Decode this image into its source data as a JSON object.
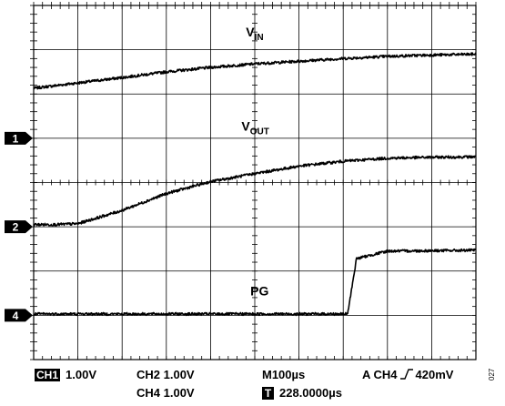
{
  "chart_data": {
    "type": "line",
    "title": "",
    "xlabel": "",
    "ylabel": "",
    "grid": true,
    "divisions": {
      "x": 10,
      "y": 8
    },
    "x_unit": "div",
    "y_unit": "div",
    "xlim": [
      0,
      10
    ],
    "ylim": [
      -4,
      4
    ],
    "series": [
      {
        "name": "VIN",
        "label_main": "V",
        "label_sub": "IN",
        "x": [
          0,
          1,
          2,
          3,
          4,
          5,
          6,
          7,
          8,
          9,
          10
        ],
        "y": [
          2.13,
          2.25,
          2.37,
          2.5,
          2.6,
          2.68,
          2.74,
          2.8,
          2.85,
          2.88,
          2.9
        ]
      },
      {
        "name": "VOUT",
        "label_main": "V",
        "label_sub": "OUT",
        "x": [
          0,
          0.5,
          1,
          2,
          3,
          4,
          5,
          6,
          7,
          8,
          9,
          10
        ],
        "y": [
          -0.95,
          -0.95,
          -0.93,
          -0.63,
          -0.25,
          0.02,
          0.2,
          0.37,
          0.48,
          0.55,
          0.57,
          0.58
        ]
      },
      {
        "name": "PG",
        "label_main": "PG",
        "label_sub": "",
        "x": [
          0,
          7,
          7.1,
          7.3,
          8,
          10
        ],
        "y": [
          -2.97,
          -2.97,
          -2.97,
          -1.72,
          -1.55,
          -1.53
        ]
      }
    ],
    "markers": [
      {
        "label": "1",
        "y": 1.0
      },
      {
        "label": "2",
        "y": -1.0
      },
      {
        "label": "4",
        "y": -3.0
      }
    ]
  },
  "status": {
    "ch1_badge": "CH1",
    "ch1": "1.00V",
    "ch2": "CH2 1.00V",
    "ch4": "CH4 1.00V",
    "timebase": "M100µs",
    "trigger_prefix": "A  CH4",
    "trigger_level": "420mV",
    "t_badge": "T",
    "t_pos": "228.0000µs"
  },
  "figure_code": "027"
}
